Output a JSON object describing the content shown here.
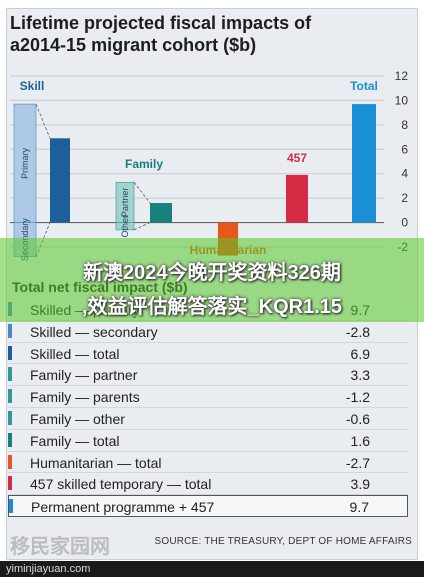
{
  "header": {
    "title_line1": "Lifetime projected fiscal impacts of",
    "title_line2": "a2014-15 migrant cohort ($b)"
  },
  "chart_data": {
    "type": "bar",
    "ylim": [
      -2,
      12
    ],
    "yticks": [
      12,
      10,
      8,
      6,
      4,
      2,
      0,
      -2
    ],
    "grid": true,
    "groups": [
      {
        "label": "Skill",
        "bars": [
          {
            "name": "Primary",
            "value": 9.7,
            "color": "#4a87c5",
            "shade": "light"
          },
          {
            "name": "Secondary",
            "value": -2.8,
            "color": "#4a87c5",
            "shade": "light"
          },
          {
            "name": "Skilled total",
            "value": 6.9,
            "color": "#1f5f99",
            "shade": "dark"
          }
        ]
      },
      {
        "label": "Family",
        "bars": [
          {
            "name": "Partner",
            "value": 3.3,
            "color": "#2e9a93",
            "shade": "light"
          },
          {
            "name": "Other",
            "value": -0.6,
            "color": "#2e9a93",
            "shade": "light"
          },
          {
            "name": "Family total",
            "value": 1.6,
            "color": "#17807a",
            "shade": "dark"
          }
        ]
      },
      {
        "label": "Humanitarian",
        "bars": [
          {
            "name": "Humanitarian",
            "value": -2.7,
            "color": "#e8581c"
          }
        ]
      },
      {
        "label": "457",
        "bars": [
          {
            "name": "457",
            "value": 3.9,
            "color": "#d62b45"
          }
        ]
      },
      {
        "label": "Total",
        "bars": [
          {
            "name": "Total",
            "value": 9.7,
            "color": "#1b8fd6"
          }
        ]
      }
    ],
    "colors": {
      "Skill": "#1f5f99",
      "Family": "#17807a",
      "Humanitarian": "#e8581c",
      "457": "#d62b45",
      "Total": "#1b8fd6"
    }
  },
  "table": {
    "title": "Total net fiscal impact ($b)",
    "rows": [
      {
        "label": "Skilled — primary",
        "value": "9.7",
        "color": "#4a87c5"
      },
      {
        "label": "Skilled — secondary",
        "value": "-2.8",
        "color": "#4a87c5"
      },
      {
        "label": "Skilled — total",
        "value": "6.9",
        "color": "#1f5f99"
      },
      {
        "label": "Family — partner",
        "value": "3.3",
        "color": "#2e9a93"
      },
      {
        "label": "Family — parents",
        "value": "-1.2",
        "color": "#2e9a93"
      },
      {
        "label": "Family — other",
        "value": "-0.6",
        "color": "#2e9a93"
      },
      {
        "label": "Family — total",
        "value": "1.6",
        "color": "#17807a"
      },
      {
        "label": "Humanitarian — total",
        "value": "-2.7",
        "color": "#e8581c"
      },
      {
        "label": "457 skilled temporary — total",
        "value": "3.9",
        "color": "#d62b45"
      },
      {
        "label": "Permanent programme + 457",
        "value": "9.7",
        "color": "#1b8fd6"
      }
    ]
  },
  "source": "SOURCE: THE TREASURY, DEPT OF HOME AFFAIRS",
  "overlay": {
    "line1": "新澳2024今晚开奖资料326期",
    "line2": ",效益评估解答落实_KQR1.15"
  },
  "watermark": {
    "brand": "移民家园网",
    "url": "yiminjiayuan.com"
  }
}
